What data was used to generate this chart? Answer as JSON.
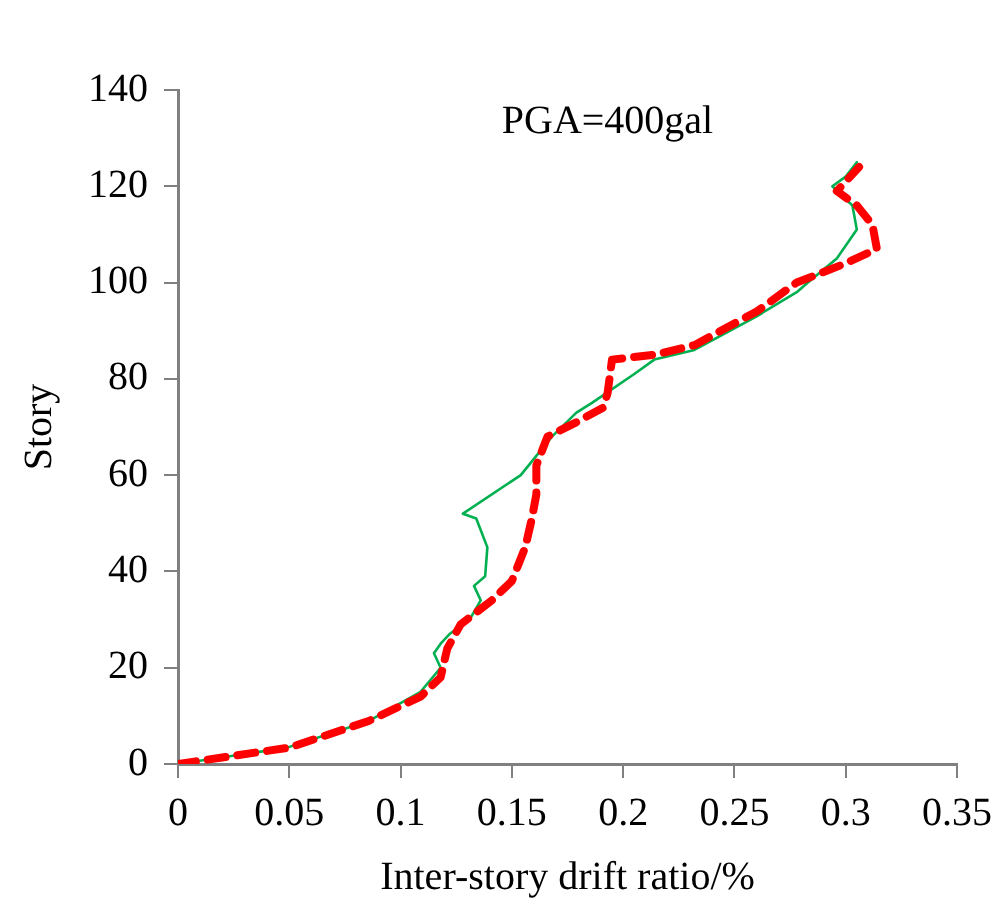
{
  "chart_data": {
    "type": "line",
    "xlabel": "Inter-story drift ratio/%",
    "ylabel": "Story",
    "annotations": [
      "PGA=400gal"
    ],
    "xlim": [
      0,
      0.35
    ],
    "xticks": [
      0,
      0.05,
      0.1,
      0.15,
      0.2,
      0.25,
      0.3,
      0.35
    ],
    "ylim": [
      0,
      140
    ],
    "yticks": [
      0,
      20,
      40,
      60,
      80,
      100,
      120,
      140
    ],
    "grid": false,
    "legend": false,
    "marker": "none",
    "series": [
      {
        "color": "#ff0000",
        "line_style": "dashed",
        "x": [
          0,
          0.05,
          0.086,
          0.109,
          0.118,
          0.121,
          0.127,
          0.141,
          0.15,
          0.156,
          0.159,
          0.161,
          0.161,
          0.166,
          0.179,
          0.191,
          0.193,
          0.195,
          0.214,
          0.232,
          0.26,
          0.278,
          0.3,
          0.314,
          0.312,
          0.305,
          0.296,
          0.3,
          0.306
        ],
        "values": [
          0,
          3.4,
          9,
          14,
          18,
          24,
          29,
          34,
          38,
          45,
          51,
          56,
          62,
          68,
          71,
          74,
          77,
          84,
          85,
          87,
          94,
          100,
          104,
          107,
          112,
          116,
          119,
          121,
          124
        ]
      },
      {
        "color": "#00b050",
        "line_style": "solid",
        "x": [
          0,
          0.049,
          0.086,
          0.109,
          0.118,
          0.115,
          0.118,
          0.122,
          0.131,
          0.136,
          0.133,
          0.138,
          0.139,
          0.134,
          0.128,
          0.154,
          0.168,
          0.179,
          0.186,
          0.205,
          0.214,
          0.232,
          0.26,
          0.278,
          0.283,
          0.296,
          0.305,
          0.303,
          0.294,
          0.3,
          0.305
        ],
        "values": [
          0,
          3.4,
          9,
          15,
          20,
          23,
          25,
          27,
          30,
          34,
          37,
          39,
          45,
          51,
          52,
          60,
          68,
          73,
          75,
          81,
          84,
          86,
          93,
          98,
          100,
          105,
          111,
          116,
          120,
          122,
          125
        ]
      }
    ]
  }
}
